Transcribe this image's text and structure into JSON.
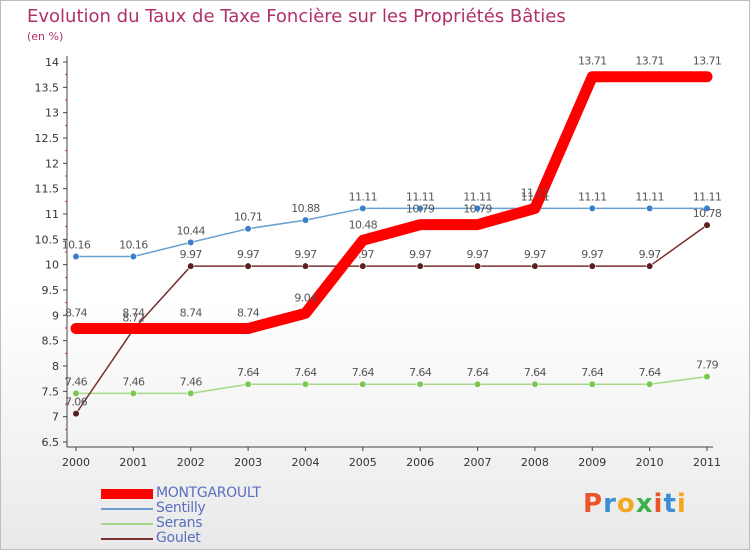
{
  "header": {
    "title": "Evolution du Taux de Taxe Foncière sur les Propriétés Bâties",
    "subtitle": "(en %)"
  },
  "logo": {
    "text": "Proxiti",
    "colors": [
      "#e8562a",
      "#3a8fd6",
      "#f2a81c",
      "#3ab14a",
      "#e8562a",
      "#3a8fd6",
      "#f2a81c"
    ]
  },
  "chart_data": {
    "type": "line",
    "title": "Evolution du Taux de Taxe Foncière sur les Propriétés Bâties",
    "ylabel": "(en %)",
    "xlabel": "",
    "categories": [
      "2000",
      "2001",
      "2002",
      "2003",
      "2004",
      "2005",
      "2006",
      "2007",
      "2008",
      "2009",
      "2010",
      "2011"
    ],
    "ylim": [
      6.5,
      14
    ],
    "yticks": [
      "6.5",
      "7",
      "7.5",
      "8",
      "8.5",
      "9",
      "9.5",
      "10",
      "10.5",
      "11",
      "11.5",
      "12",
      "12.5",
      "13",
      "13.5",
      "14"
    ],
    "grid": false,
    "legend_position": "bottom-left",
    "series": [
      {
        "name": "Sentilly",
        "color": "#6a9fd0",
        "marker": "#3a7fc8",
        "width": "thin",
        "values": [
          10.16,
          10.16,
          10.44,
          10.71,
          10.88,
          11.11,
          11.11,
          11.11,
          11.11,
          11.11,
          11.11,
          11.11
        ],
        "labels": [
          "10.16",
          "10.16",
          "10.44",
          "10.71",
          "10.88",
          "11.11",
          "11.11",
          "11.11",
          "11.11",
          "11.11",
          "11.11",
          "11.11"
        ]
      },
      {
        "name": "Serans",
        "color": "#a6d88a",
        "marker": "#7cc652",
        "width": "thin",
        "values": [
          7.46,
          7.46,
          7.46,
          7.64,
          7.64,
          7.64,
          7.64,
          7.64,
          7.64,
          7.64,
          7.64,
          7.79
        ],
        "labels": [
          "7.46",
          "7.46",
          "7.46",
          "7.64",
          "7.64",
          "7.64",
          "7.64",
          "7.64",
          "7.64",
          "7.64",
          "7.64",
          "7.79"
        ]
      },
      {
        "name": "Goulet",
        "color": "#7a3030",
        "marker": "#5e1e1e",
        "width": "thin",
        "values": [
          7.06,
          8.72,
          9.97,
          9.97,
          9.97,
          9.97,
          9.97,
          9.97,
          9.97,
          9.97,
          9.97,
          10.78
        ],
        "labels": [
          "7.06",
          "8.72",
          "9.97",
          "9.97",
          "9.97",
          "9.97",
          "9.97",
          "9.97",
          "9.97",
          "9.97",
          "9.97",
          "10.78"
        ]
      },
      {
        "name": "MONTGAROULT",
        "color": "#ff0000",
        "marker": "#ff0000",
        "width": "thick",
        "values": [
          8.74,
          8.74,
          8.74,
          8.74,
          9.04,
          10.48,
          10.79,
          10.79,
          11.11,
          13.71,
          13.71,
          13.71
        ],
        "labels": [
          "8.74",
          "8.74",
          "8.74",
          "8.74",
          "9.04",
          "10.48",
          "10.79",
          "10.79",
          "11.11",
          "13.71",
          "13.71",
          "13.71"
        ]
      }
    ],
    "legend": [
      "MONTGAROULT",
      "Sentilly",
      "Serans",
      "Goulet"
    ]
  }
}
